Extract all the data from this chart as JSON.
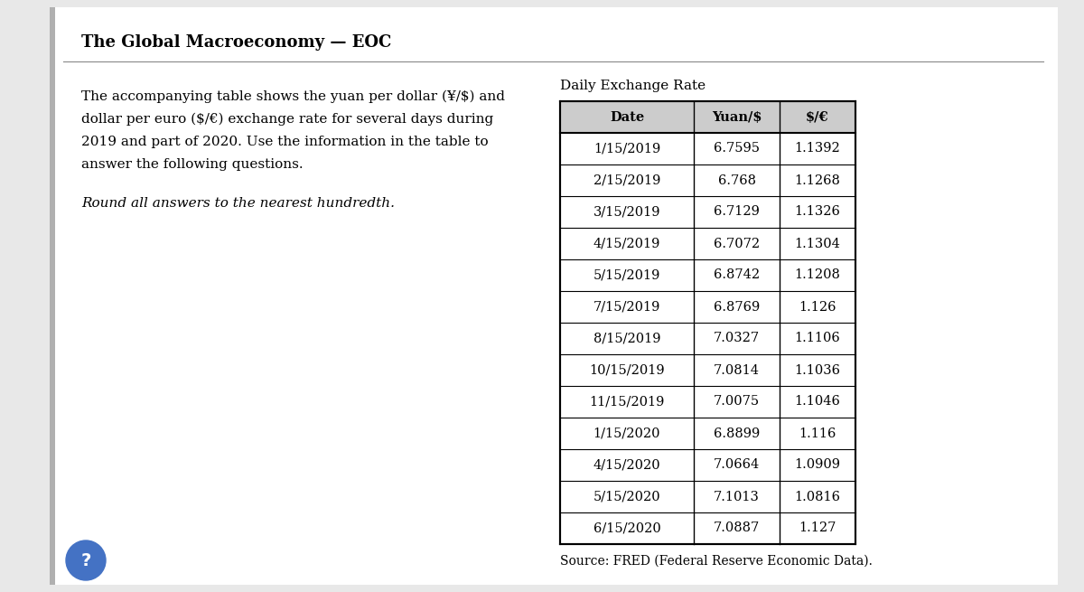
{
  "title": "The Global Macroeconomy — EOC",
  "left_text_lines": [
    "The accompanying table shows the yuan per dollar (¥/$) and",
    "dollar per euro ($/€) exchange rate for several days during",
    "2019 and part of 2020. Use the information in the table to",
    "answer the following questions."
  ],
  "italic_line": "Round all answers to the nearest hundredth.",
  "table_title": "Daily Exchange Rate",
  "headers": [
    "Date",
    "Yuan/$",
    "$/€"
  ],
  "rows": [
    [
      "1/15/2019",
      "6.7595",
      "1.1392"
    ],
    [
      "2/15/2019",
      "6.768",
      "1.1268"
    ],
    [
      "3/15/2019",
      "6.7129",
      "1.1326"
    ],
    [
      "4/15/2019",
      "6.7072",
      "1.1304"
    ],
    [
      "5/15/2019",
      "6.8742",
      "1.1208"
    ],
    [
      "7/15/2019",
      "6.8769",
      "1.126"
    ],
    [
      "8/15/2019",
      "7.0327",
      "1.1106"
    ],
    [
      "10/15/2019",
      "7.0814",
      "1.1036"
    ],
    [
      "11/15/2019",
      "7.0075",
      "1.1046"
    ],
    [
      "1/15/2020",
      "6.8899",
      "1.116"
    ],
    [
      "4/15/2020",
      "7.0664",
      "1.0909"
    ],
    [
      "5/15/2020",
      "7.1013",
      "1.0816"
    ],
    [
      "6/15/2020",
      "7.0887",
      "1.127"
    ]
  ],
  "source_text": "Source: FRED (Federal Reserve Economic Data).",
  "bg_color": "#e8e8e8",
  "content_bg": "#ffffff",
  "header_bg": "#cccccc",
  "title_fontsize": 13,
  "body_fontsize": 11,
  "table_fontsize": 10.5,
  "source_fontsize": 10
}
